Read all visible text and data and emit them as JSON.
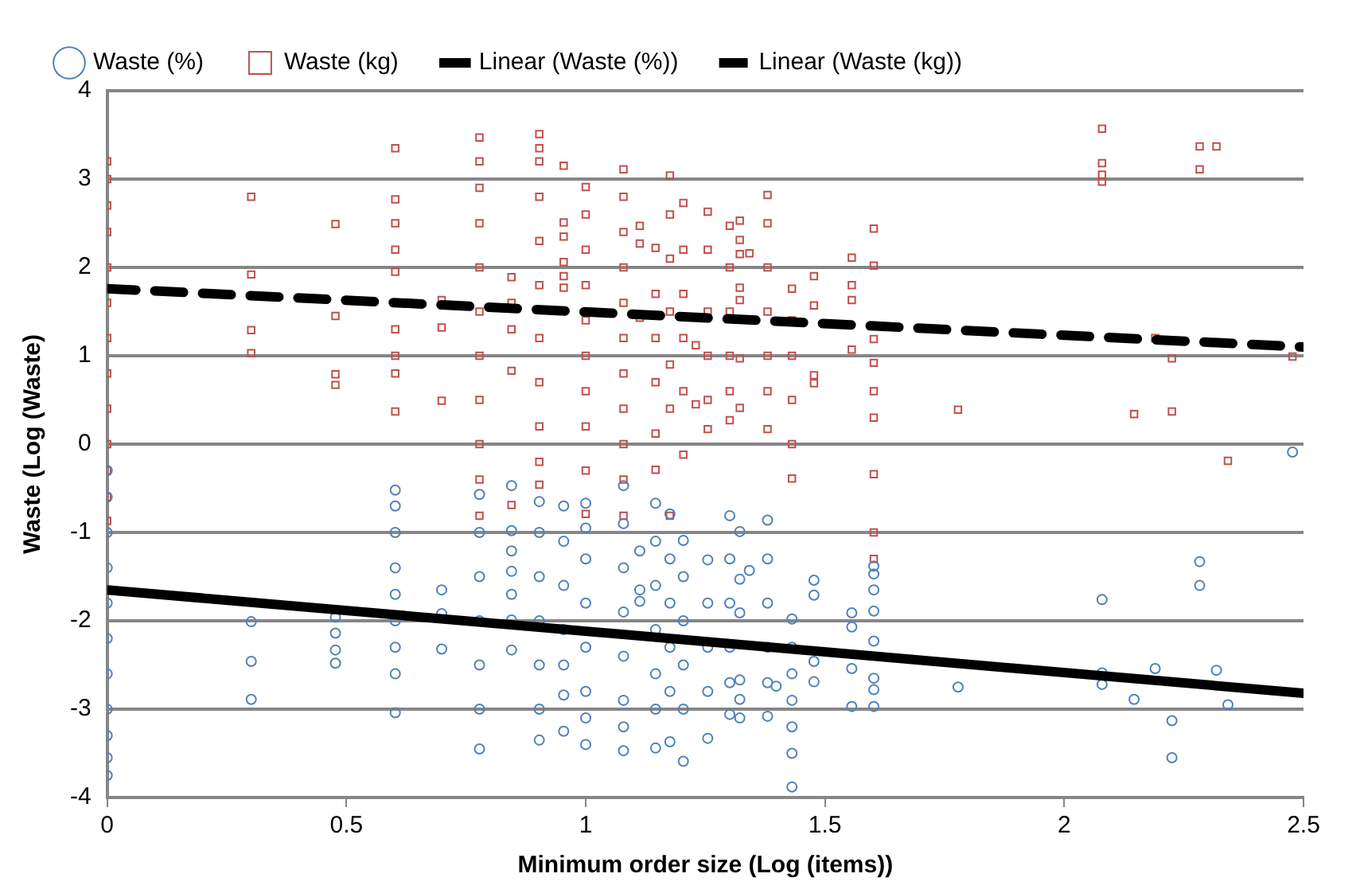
{
  "chart_data": {
    "type": "scatter",
    "xlabel": "Minimum order size (Log (items))",
    "ylabel": "Waste (Log (Waste)",
    "xlim": [
      0,
      2.5
    ],
    "xticks": [
      0,
      0.5,
      1,
      1.5,
      2,
      2.5
    ],
    "ylim": [
      -4,
      4
    ],
    "yticks": [
      -4,
      -3,
      -2,
      -1,
      0,
      1,
      2,
      3,
      4
    ],
    "grid": "y",
    "legend": "top",
    "series": [
      {
        "name": "Waste (%)",
        "type": "scatter",
        "marker": "circle",
        "color": "#4f81bd",
        "x": [
          0,
          0,
          0,
          0,
          0,
          0,
          0,
          0,
          0,
          0,
          0,
          0.301,
          0.301,
          0.301,
          0.477,
          0.477,
          0.477,
          0.477,
          0.602,
          0.602,
          0.602,
          0.602,
          0.602,
          0.602,
          0.602,
          0.602,
          0.602,
          0.699,
          0.699,
          0.699,
          0.778,
          0.778,
          0.778,
          0.778,
          0.778,
          0.778,
          0.778,
          0.845,
          0.845,
          0.845,
          0.845,
          0.845,
          0.845,
          0.845,
          0.903,
          0.903,
          0.903,
          0.903,
          0.903,
          0.903,
          0.903,
          0.954,
          0.954,
          0.954,
          0.954,
          0.954,
          0.954,
          0.954,
          1,
          1,
          1,
          1,
          1,
          1,
          1,
          1,
          1.079,
          1.079,
          1.079,
          1.079,
          1.079,
          1.079,
          1.079,
          1.079,
          1.113,
          1.113,
          1.113,
          1.146,
          1.146,
          1.146,
          1.146,
          1.146,
          1.146,
          1.146,
          1.176,
          1.176,
          1.176,
          1.176,
          1.176,
          1.176,
          1.204,
          1.204,
          1.204,
          1.204,
          1.204,
          1.204,
          1.255,
          1.255,
          1.255,
          1.255,
          1.255,
          1.301,
          1.301,
          1.301,
          1.301,
          1.301,
          1.301,
          1.322,
          1.322,
          1.322,
          1.322,
          1.322,
          1.322,
          1.342,
          1.38,
          1.38,
          1.38,
          1.38,
          1.38,
          1.38,
          1.398,
          1.431,
          1.431,
          1.431,
          1.431,
          1.431,
          1.431,
          1.431,
          1.477,
          1.477,
          1.477,
          1.477,
          1.556,
          1.556,
          1.556,
          1.556,
          1.602,
          1.602,
          1.602,
          1.602,
          1.602,
          1.602,
          1.602,
          1.602,
          1.778,
          2.079,
          2.079,
          2.079,
          2.146,
          2.19,
          2.225,
          2.225,
          2.283,
          2.283,
          2.318,
          2.342,
          2.477
        ],
        "values": [
          -0.3,
          -0.6,
          -1.0,
          -1.4,
          -1.8,
          -2.2,
          -2.6,
          -3.0,
          -3.3,
          -3.55,
          -3.75,
          -2.01,
          -2.46,
          -2.89,
          -1.96,
          -2.14,
          -2.33,
          -2.48,
          -0.52,
          -0.7,
          -1.0,
          -1.4,
          -1.7,
          -2.0,
          -2.3,
          -2.6,
          -3.04,
          -1.65,
          -1.92,
          -2.32,
          -0.57,
          -1.0,
          -1.5,
          -2.0,
          -2.5,
          -3.0,
          -3.45,
          -0.47,
          -0.98,
          -1.21,
          -1.44,
          -1.7,
          -1.99,
          -2.33,
          -0.65,
          -1.0,
          -1.5,
          -2.0,
          -2.5,
          -3.0,
          -3.35,
          -0.7,
          -1.1,
          -1.6,
          -2.1,
          -2.5,
          -2.84,
          -3.25,
          -0.67,
          -0.95,
          -1.3,
          -1.8,
          -2.3,
          -2.8,
          -3.1,
          -3.4,
          -0.47,
          -0.9,
          -1.4,
          -1.9,
          -2.4,
          -2.9,
          -3.2,
          -3.47,
          -1.21,
          -1.65,
          -1.78,
          -0.67,
          -1.1,
          -1.6,
          -2.1,
          -2.6,
          -3.0,
          -3.44,
          -0.79,
          -1.3,
          -1.8,
          -2.3,
          -2.8,
          -3.37,
          -1.09,
          -1.5,
          -2.0,
          -2.5,
          -3.0,
          -3.59,
          -1.31,
          -1.8,
          -2.3,
          -2.8,
          -3.33,
          -0.81,
          -1.3,
          -1.8,
          -2.3,
          -2.7,
          -3.06,
          -0.99,
          -1.53,
          -1.91,
          -2.67,
          -2.89,
          -3.1,
          -1.43,
          -0.86,
          -1.3,
          -1.8,
          -2.3,
          -2.7,
          -3.08,
          -2.74,
          -1.98,
          -2.3,
          -2.6,
          -2.9,
          -3.2,
          -3.5,
          -3.88,
          -1.54,
          -1.71,
          -2.46,
          -2.69,
          -1.91,
          -2.07,
          -2.54,
          -2.97,
          -1.38,
          -1.47,
          -1.65,
          -1.89,
          -2.23,
          -2.65,
          -2.78,
          -2.97,
          -2.75,
          -1.76,
          -2.59,
          -2.72,
          -2.89,
          -2.54,
          -3.13,
          -3.55,
          -1.33,
          -1.6,
          -2.56,
          -2.95,
          -0.09
        ]
      },
      {
        "name": "Waste (kg)",
        "type": "scatter",
        "marker": "square",
        "color": "#c0504d",
        "x": [
          0,
          0,
          0,
          0,
          0,
          0,
          0,
          0,
          0,
          0,
          0,
          0,
          0,
          0.301,
          0.301,
          0.301,
          0.301,
          0.477,
          0.477,
          0.477,
          0.477,
          0.602,
          0.602,
          0.602,
          0.602,
          0.602,
          0.602,
          0.602,
          0.602,
          0.602,
          0.699,
          0.699,
          0.699,
          0.778,
          0.778,
          0.778,
          0.778,
          0.778,
          0.778,
          0.778,
          0.778,
          0.778,
          0.778,
          0.778,
          0.845,
          0.845,
          0.845,
          0.845,
          0.845,
          0.903,
          0.903,
          0.903,
          0.903,
          0.903,
          0.903,
          0.903,
          0.903,
          0.903,
          0.903,
          0.903,
          0.954,
          0.954,
          0.954,
          0.954,
          0.954,
          0.954,
          1,
          1,
          1,
          1,
          1,
          1,
          1,
          1,
          1,
          1,
          1.079,
          1.079,
          1.079,
          1.079,
          1.079,
          1.079,
          1.079,
          1.079,
          1.079,
          1.079,
          1.079,
          1.113,
          1.113,
          1.113,
          1.146,
          1.146,
          1.146,
          1.146,
          1.146,
          1.146,
          1.176,
          1.176,
          1.176,
          1.176,
          1.176,
          1.176,
          1.176,
          1.204,
          1.204,
          1.204,
          1.204,
          1.204,
          1.204,
          1.23,
          1.23,
          1.255,
          1.255,
          1.255,
          1.255,
          1.255,
          1.255,
          1.301,
          1.301,
          1.301,
          1.301,
          1.301,
          1.301,
          1.322,
          1.322,
          1.322,
          1.322,
          1.322,
          1.322,
          1.322,
          1.342,
          1.38,
          1.38,
          1.38,
          1.38,
          1.38,
          1.38,
          1.38,
          1.431,
          1.431,
          1.431,
          1.431,
          1.431,
          1.431,
          1.477,
          1.477,
          1.477,
          1.477,
          1.556,
          1.556,
          1.556,
          1.556,
          1.602,
          1.602,
          1.602,
          1.602,
          1.602,
          1.602,
          1.602,
          1.602,
          1.602,
          1.778,
          2.079,
          2.079,
          2.079,
          2.079,
          2.146,
          2.19,
          2.225,
          2.225,
          2.283,
          2.283,
          2.318,
          2.342,
          2.477
        ],
        "values": [
          3.2,
          3.0,
          2.7,
          2.4,
          2.0,
          1.6,
          1.2,
          0.8,
          0.4,
          0.0,
          -0.3,
          -0.6,
          -0.87,
          2.8,
          1.92,
          1.29,
          1.03,
          2.49,
          1.45,
          0.79,
          0.67,
          3.35,
          2.77,
          2.5,
          2.2,
          1.95,
          1.3,
          1.0,
          0.8,
          0.37,
          1.63,
          1.32,
          0.49,
          3.47,
          3.2,
          2.9,
          2.5,
          2.0,
          1.5,
          1.0,
          0.5,
          0.0,
          -0.4,
          -0.81,
          1.89,
          1.6,
          1.3,
          0.83,
          -0.69,
          3.51,
          3.35,
          3.2,
          2.8,
          2.3,
          1.8,
          1.2,
          0.7,
          0.2,
          -0.2,
          -0.46,
          3.15,
          2.51,
          2.35,
          2.06,
          1.9,
          1.77,
          2.91,
          2.6,
          2.2,
          1.8,
          1.4,
          1.0,
          0.6,
          0.2,
          -0.3,
          -0.79,
          3.11,
          2.8,
          2.4,
          2.0,
          1.6,
          1.2,
          0.8,
          0.4,
          0.0,
          -0.4,
          -0.81,
          2.47,
          2.27,
          1.43,
          2.22,
          1.7,
          1.2,
          0.7,
          0.12,
          -0.29,
          3.04,
          2.6,
          2.1,
          1.5,
          0.9,
          0.4,
          -0.81,
          2.73,
          2.2,
          1.7,
          1.2,
          0.6,
          -0.12,
          1.12,
          0.45,
          2.63,
          2.2,
          1.5,
          1.0,
          0.5,
          0.17,
          2.47,
          2.0,
          1.5,
          1.0,
          0.6,
          0.27,
          2.53,
          2.31,
          2.15,
          1.77,
          1.63,
          0.97,
          0.41,
          2.16,
          2.82,
          2.5,
          2.0,
          1.5,
          1.0,
          0.6,
          0.17,
          1.76,
          1.4,
          1.0,
          0.5,
          0.0,
          -0.39,
          1.9,
          1.57,
          0.78,
          0.69,
          2.11,
          1.8,
          1.63,
          1.07,
          2.44,
          2.02,
          1.19,
          0.92,
          0.6,
          0.3,
          -0.34,
          -1.0,
          -1.3,
          0.39,
          3.57,
          3.18,
          3.05,
          2.97,
          0.34,
          1.2,
          0.97,
          0.37,
          3.37,
          3.11,
          3.37,
          -0.19,
          0.99
        ]
      },
      {
        "name": "Linear (Waste (%))",
        "type": "line",
        "marker": "none",
        "line_style": "solid",
        "color": "#000000",
        "x": [
          0,
          2.5
        ],
        "values": [
          -1.65,
          -2.82
        ]
      },
      {
        "name": "Linear (Waste (kg))",
        "type": "line",
        "marker": "none",
        "line_style": "dashed",
        "color": "#000000",
        "x": [
          0,
          2.5
        ],
        "values": [
          1.76,
          1.1
        ]
      }
    ]
  }
}
